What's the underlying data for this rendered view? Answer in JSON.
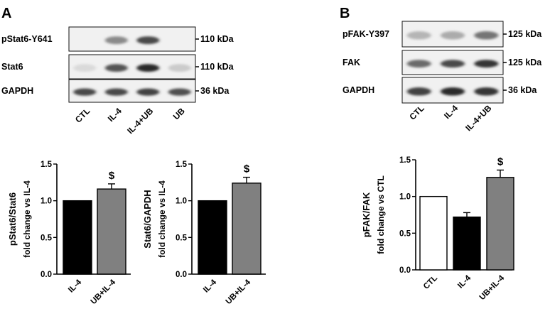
{
  "panel_a": {
    "letter": "A",
    "blots": [
      {
        "label": "pStat6-Y641",
        "kda": "110 kDa",
        "bands": [
          0.0,
          0.45,
          0.75,
          0.0
        ]
      },
      {
        "label": "Stat6",
        "kda": "110 kDa",
        "bands": [
          0.08,
          0.7,
          0.9,
          0.15
        ]
      },
      {
        "label": "GAPDH",
        "kda": "36 kDa",
        "bands": [
          0.75,
          0.75,
          0.78,
          0.72
        ]
      }
    ],
    "lanes": [
      "CTL",
      "IL-4",
      "IL-4+UB",
      "UB"
    ]
  },
  "panel_b": {
    "letter": "B",
    "blots": [
      {
        "label": "pFAK-Y397",
        "kda": "125 kDa",
        "bands": [
          0.25,
          0.3,
          0.55
        ]
      },
      {
        "label": "FAK",
        "kda": "125 kDa",
        "bands": [
          0.6,
          0.75,
          0.85
        ]
      },
      {
        "label": "GAPDH",
        "kda": "36 kDa",
        "bands": [
          0.78,
          0.9,
          0.85
        ]
      }
    ],
    "lanes": [
      "CTL",
      "IL-4",
      "IL-4+UB"
    ]
  },
  "chart_data": [
    {
      "type": "bar",
      "categories": [
        "IL-4",
        "UB+IL-4"
      ],
      "values": [
        1.0,
        1.16
      ],
      "errors": [
        0,
        0.07
      ],
      "bar_colors": [
        "#000000",
        "#808080"
      ],
      "significance": [
        "",
        "$"
      ],
      "ylabel": "pStat6/Stat6",
      "ylabel2": "fold change vs IL-4",
      "ylim": [
        0,
        1.5
      ],
      "yticks": [
        "0.0",
        "0.5",
        "1.0",
        "1.5"
      ]
    },
    {
      "type": "bar",
      "categories": [
        "IL-4",
        "UB+IL-4"
      ],
      "values": [
        1.0,
        1.24
      ],
      "errors": [
        0,
        0.08
      ],
      "bar_colors": [
        "#000000",
        "#808080"
      ],
      "significance": [
        "",
        "$"
      ],
      "ylabel": "Stat6/GAPDH",
      "ylabel2": "fold change vs IL-4",
      "ylim": [
        0,
        1.5
      ],
      "yticks": [
        "0.0",
        "0.5",
        "1.0",
        "1.5"
      ]
    },
    {
      "type": "bar",
      "categories": [
        "CTL",
        "IL-4",
        "UB+IL-4"
      ],
      "values": [
        1.0,
        0.72,
        1.26
      ],
      "errors": [
        0,
        0.06,
        0.1
      ],
      "bar_colors": [
        "#ffffff",
        "#000000",
        "#808080"
      ],
      "significance": [
        "",
        "",
        "$"
      ],
      "ylabel": "pFAK/FAK",
      "ylabel2": "fold change vs CTL",
      "ylim": [
        0,
        1.5
      ],
      "yticks": [
        "0.0",
        "0.5",
        "1.0",
        "1.5"
      ]
    }
  ]
}
